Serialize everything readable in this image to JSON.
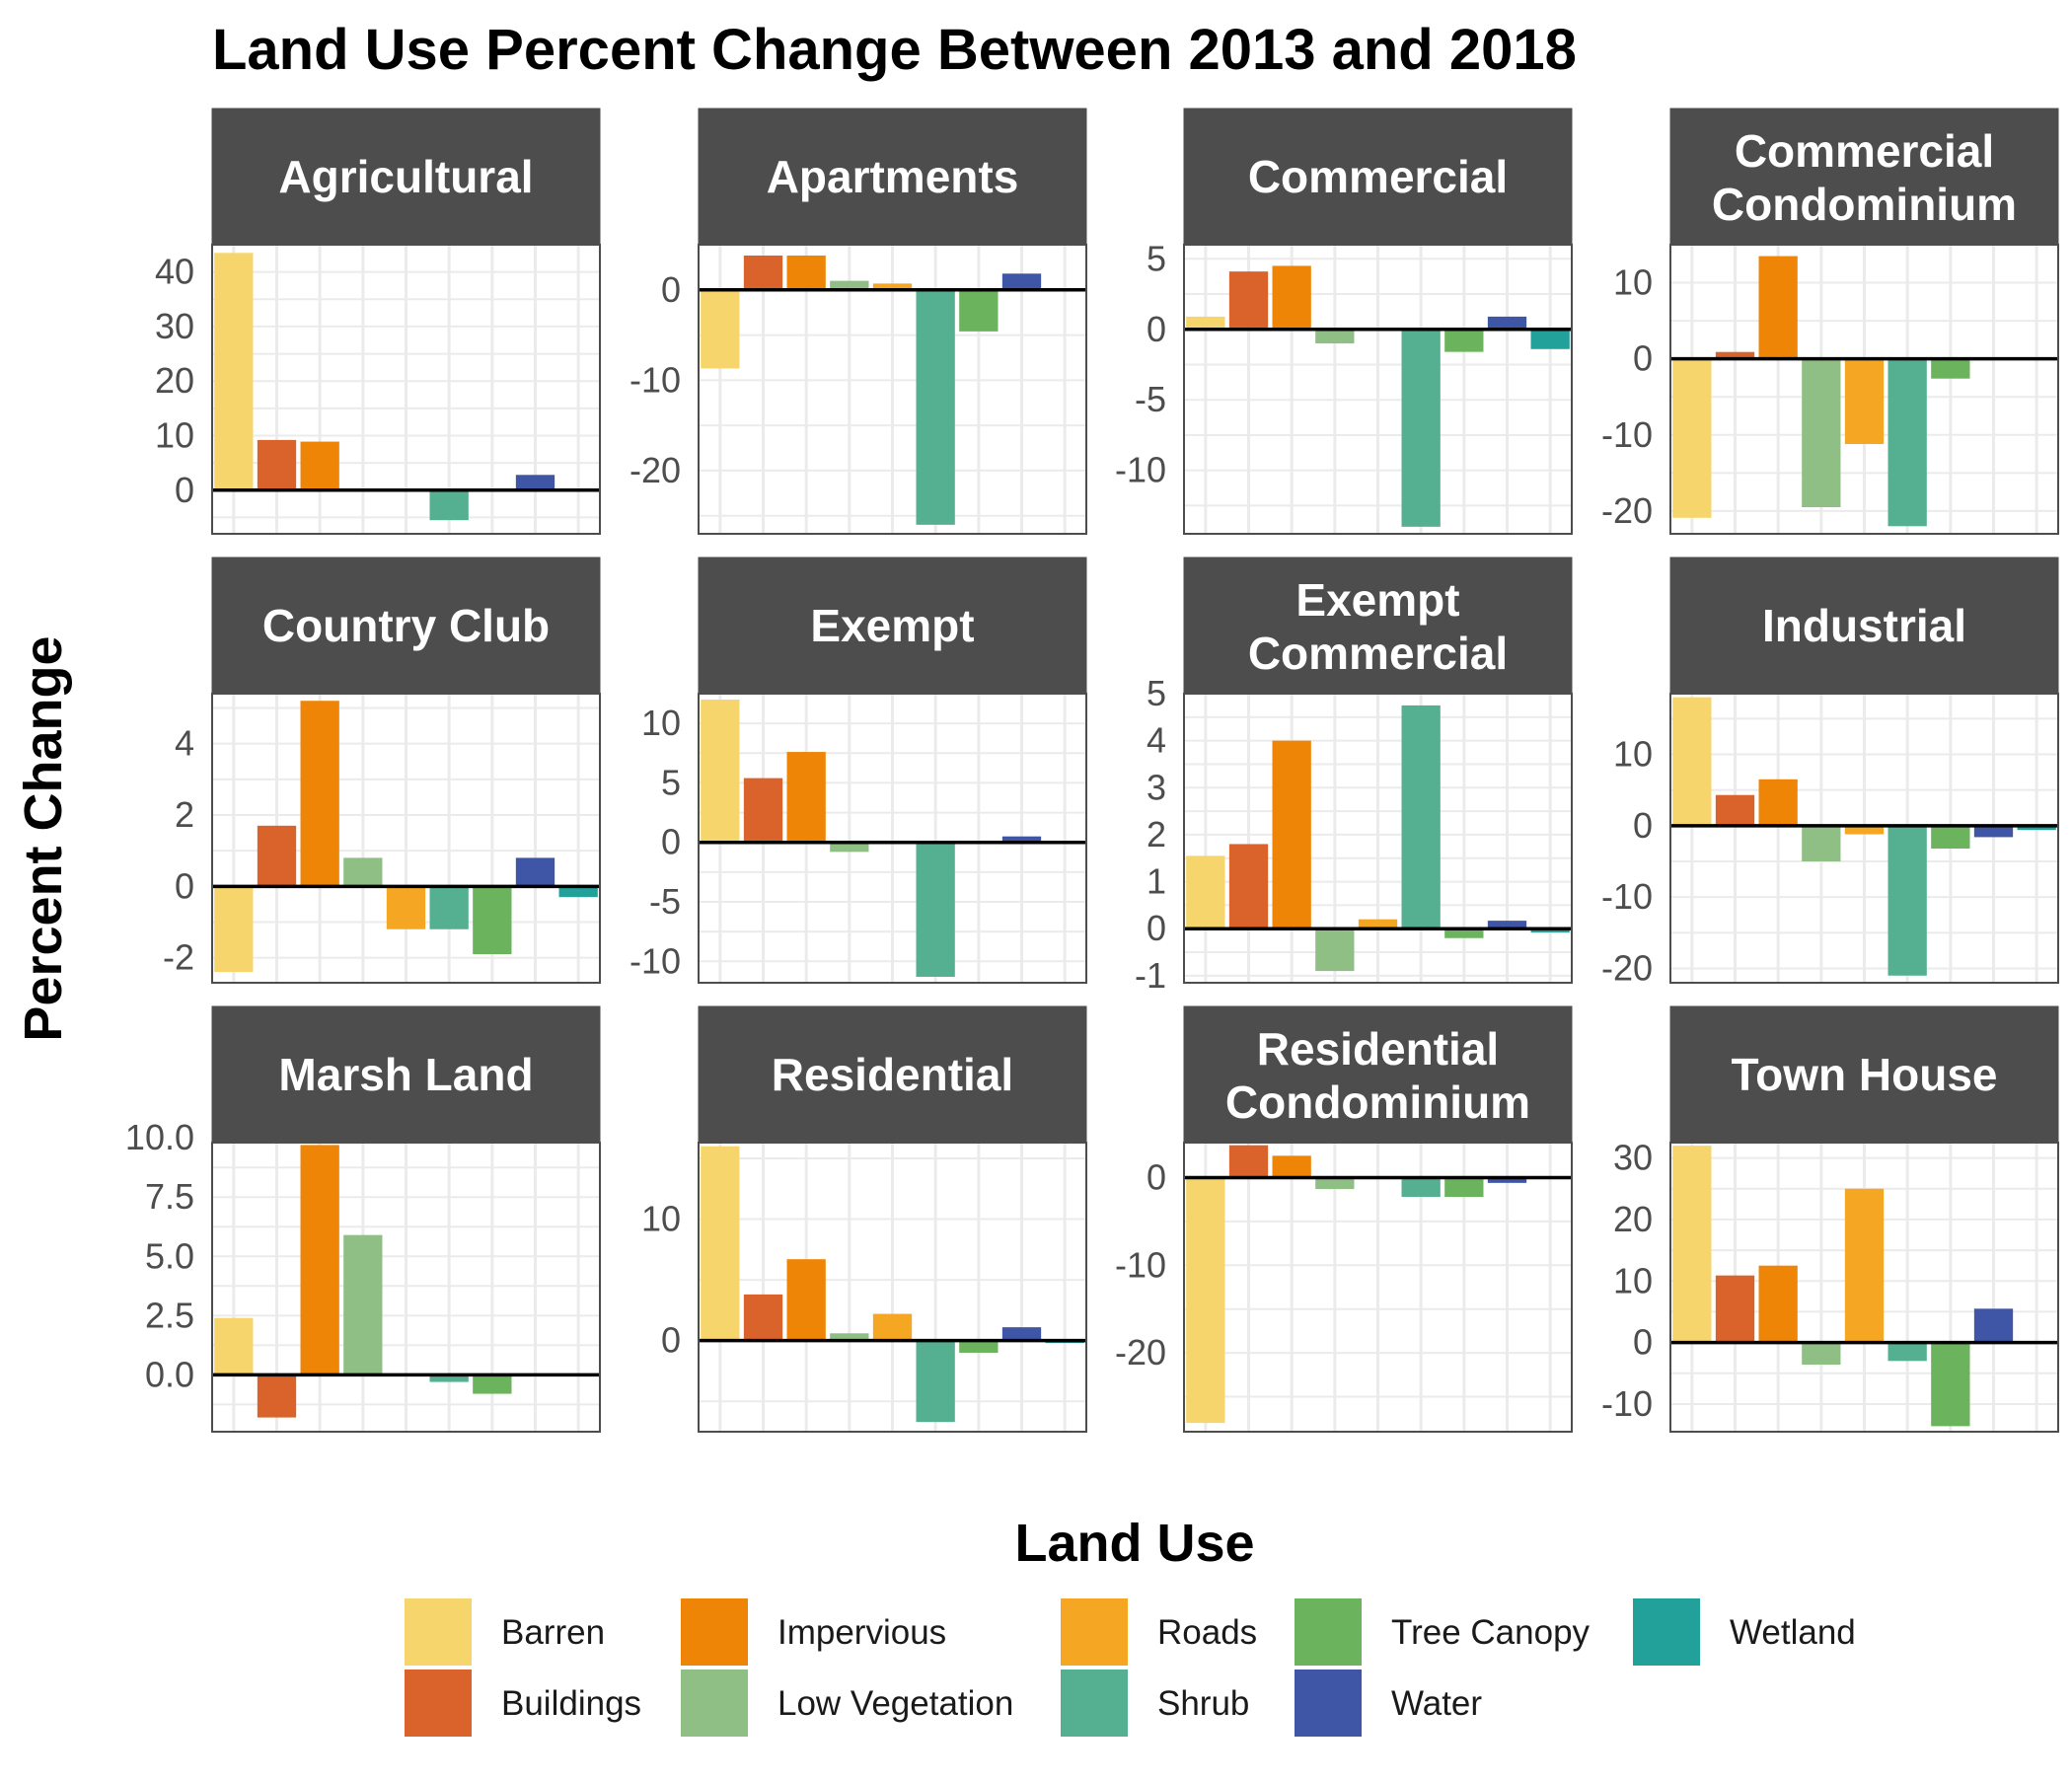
{
  "chart_data": {
    "type": "bar",
    "title": "Land Use Percent Change Between 2013 and 2018",
    "xlabel": "",
    "ylabel": "Percent Change",
    "legend_title": "Land Use",
    "legend_position": "bottom",
    "grid": true,
    "categories": [
      "Barren",
      "Buildings",
      "Impervious",
      "Low Vegetation",
      "Roads",
      "Shrub",
      "Tree Canopy",
      "Water",
      "Wetland"
    ],
    "colors": {
      "Barren": "#f6d66c",
      "Buildings": "#d9632a",
      "Impervious": "#ee8507",
      "Low Vegetation": "#8fbf84",
      "Roads": "#f5a623",
      "Shrub": "#55b091",
      "Tree Canopy": "#6cb35e",
      "Water": "#3f56a6",
      "Wetland": "#22a09a"
    },
    "facets": [
      {
        "name": [
          "Agricultural"
        ],
        "ylim": [
          -8,
          45
        ],
        "ticks": [
          "0",
          "10",
          "20",
          "30",
          "40"
        ],
        "tick_values": [
          0,
          10,
          20,
          30,
          40
        ],
        "values": [
          43.5,
          9.2,
          8.9,
          0.1,
          0.2,
          -5.5,
          0.1,
          2.8,
          0
        ]
      },
      {
        "name": [
          "Apartments"
        ],
        "ylim": [
          -27,
          5
        ],
        "ticks": [
          "0",
          "-10",
          "-20"
        ],
        "tick_values": [
          0,
          -10,
          -20
        ],
        "values": [
          -8.7,
          3.8,
          3.8,
          1.0,
          0.7,
          -26.0,
          -4.6,
          1.8,
          0
        ]
      },
      {
        "name": [
          "Commercial"
        ],
        "ylim": [
          -14.5,
          6
        ],
        "ticks": [
          "5",
          "0",
          "-5",
          "-10"
        ],
        "tick_values": [
          5,
          0,
          -5,
          -10
        ],
        "values": [
          0.9,
          4.1,
          4.5,
          -1.0,
          0.1,
          -14.0,
          -1.6,
          0.9,
          -1.4
        ]
      },
      {
        "name": [
          "Commercial",
          "Condominium"
        ],
        "ylim": [
          -23,
          15
        ],
        "ticks": [
          "10",
          "0",
          "-10",
          "-20"
        ],
        "tick_values": [
          10,
          0,
          -10,
          -20
        ],
        "values": [
          -20.9,
          0.9,
          13.5,
          -19.5,
          -11.2,
          -22.0,
          -2.6,
          0,
          0
        ]
      },
      {
        "name": [
          "Country Club"
        ],
        "ylim": [
          -2.7,
          5.4
        ],
        "ticks": [
          "4",
          "2",
          "0",
          "-2"
        ],
        "tick_values": [
          4,
          2,
          0,
          -2
        ],
        "values": [
          -2.4,
          1.7,
          5.2,
          0.8,
          -1.2,
          -1.2,
          -1.9,
          0.8,
          -0.3
        ]
      },
      {
        "name": [
          "Exempt"
        ],
        "ylim": [
          -11.8,
          12.5
        ],
        "ticks": [
          "10",
          "5",
          "0",
          "-5",
          "-10"
        ],
        "tick_values": [
          10,
          5,
          0,
          -5,
          -10
        ],
        "values": [
          12.0,
          5.4,
          7.6,
          -0.8,
          -0.1,
          -11.3,
          -0.1,
          0.5,
          0
        ]
      },
      {
        "name": [
          "Exempt",
          "Commercial"
        ],
        "ylim": [
          -1.15,
          5.0
        ],
        "ticks": [
          "5",
          "4",
          "3",
          "2",
          "1",
          "0",
          "-1"
        ],
        "tick_values": [
          5,
          4,
          3,
          2,
          1,
          0,
          -1
        ],
        "values": [
          1.55,
          1.8,
          4.0,
          -0.9,
          0.2,
          4.75,
          -0.2,
          0.17,
          -0.08
        ]
      },
      {
        "name": [
          "Industrial"
        ],
        "ylim": [
          -22,
          18.5
        ],
        "ticks": [
          "10",
          "0",
          "-10",
          "-20"
        ],
        "tick_values": [
          10,
          0,
          -10,
          -20
        ],
        "values": [
          18.0,
          4.3,
          6.5,
          -5.0,
          -1.2,
          -21.0,
          -3.2,
          -1.6,
          -0.6
        ]
      },
      {
        "name": [
          "Marsh Land"
        ],
        "ylim": [
          -2.4,
          9.8
        ],
        "ticks": [
          "10.0",
          "7.5",
          "5.0",
          "2.5",
          "0.0"
        ],
        "tick_values": [
          10,
          7.5,
          5,
          2.5,
          0
        ],
        "values": [
          2.4,
          -1.8,
          9.7,
          5.9,
          0,
          -0.3,
          -0.8,
          0,
          0
        ]
      },
      {
        "name": [
          "Residential"
        ],
        "ylim": [
          -7.5,
          16.3
        ],
        "ticks": [
          "10",
          "0"
        ],
        "tick_values": [
          10,
          0
        ],
        "values": [
          16.0,
          3.8,
          6.7,
          0.6,
          2.2,
          -6.7,
          -1.0,
          1.1,
          -0.2
        ]
      },
      {
        "name": [
          "Residential",
          "Condominium"
        ],
        "ylim": [
          -29,
          4
        ],
        "ticks": [
          "0",
          "-10",
          "-20"
        ],
        "tick_values": [
          0,
          -10,
          -20
        ],
        "values": [
          -28.0,
          3.7,
          2.5,
          -1.3,
          0.1,
          -2.2,
          -2.2,
          -0.6,
          0
        ]
      },
      {
        "name": [
          "Town House"
        ],
        "ylim": [
          -14.5,
          32.5
        ],
        "ticks": [
          "30",
          "20",
          "10",
          "0",
          "-10"
        ],
        "tick_values": [
          30,
          20,
          10,
          0,
          -10
        ],
        "values": [
          32.0,
          10.9,
          12.5,
          -3.6,
          25.0,
          -3.0,
          -13.6,
          5.5,
          0
        ]
      }
    ]
  }
}
